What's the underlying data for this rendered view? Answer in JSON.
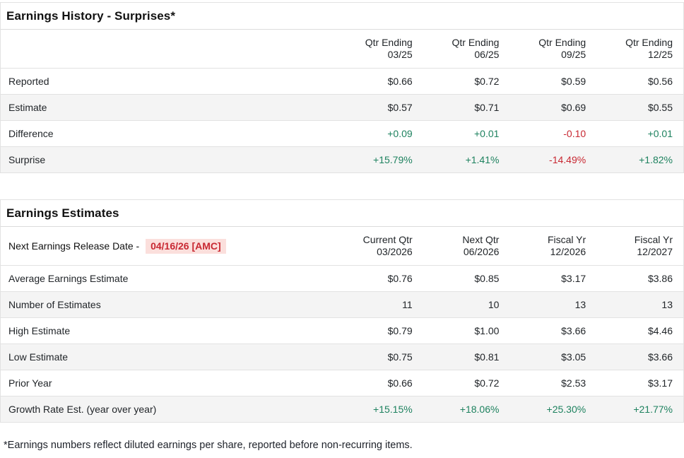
{
  "colors": {
    "positive": "#1e825f",
    "negative": "#c82832",
    "highlight_bg": "#fbdfdc",
    "row_stripe": "#f4f4f4",
    "border": "#e2e2e2"
  },
  "surprises": {
    "title": "Earnings History - Surprises*",
    "columns": [
      {
        "line1": "Qtr Ending",
        "line2": "03/25"
      },
      {
        "line1": "Qtr Ending",
        "line2": "06/25"
      },
      {
        "line1": "Qtr Ending",
        "line2": "09/25"
      },
      {
        "line1": "Qtr Ending",
        "line2": "12/25"
      }
    ],
    "rows": [
      {
        "label": "Reported",
        "values": [
          "$0.66",
          "$0.72",
          "$0.59",
          "$0.56"
        ]
      },
      {
        "label": "Estimate",
        "values": [
          "$0.57",
          "$0.71",
          "$0.69",
          "$0.55"
        ]
      },
      {
        "label": "Difference",
        "values": [
          "+0.09",
          "+0.01",
          "-0.10",
          "+0.01"
        ],
        "tones": [
          "pos",
          "pos",
          "neg",
          "pos"
        ]
      },
      {
        "label": "Surprise",
        "values": [
          "+15.79%",
          "+1.41%",
          "-14.49%",
          "+1.82%"
        ],
        "tones": [
          "pos",
          "pos",
          "neg",
          "pos"
        ]
      }
    ]
  },
  "estimates": {
    "title": "Earnings Estimates",
    "release_label": "Next Earnings Release Date -",
    "release_date": "04/16/26 [AMC]",
    "columns": [
      {
        "line1": "Current Qtr",
        "line2": "03/2026"
      },
      {
        "line1": "Next Qtr",
        "line2": "06/2026"
      },
      {
        "line1": "Fiscal Yr",
        "line2": "12/2026"
      },
      {
        "line1": "Fiscal Yr",
        "line2": "12/2027"
      }
    ],
    "rows": [
      {
        "label": "Average Earnings Estimate",
        "values": [
          "$0.76",
          "$0.85",
          "$3.17",
          "$3.86"
        ]
      },
      {
        "label": "Number of Estimates",
        "values": [
          "11",
          "10",
          "13",
          "13"
        ]
      },
      {
        "label": "High Estimate",
        "values": [
          "$0.79",
          "$1.00",
          "$3.66",
          "$4.46"
        ]
      },
      {
        "label": "Low Estimate",
        "values": [
          "$0.75",
          "$0.81",
          "$3.05",
          "$3.66"
        ]
      },
      {
        "label": "Prior Year",
        "values": [
          "$0.66",
          "$0.72",
          "$2.53",
          "$3.17"
        ]
      },
      {
        "label": "Growth Rate Est. (year over year)",
        "values": [
          "+15.15%",
          "+18.06%",
          "+25.30%",
          "+21.77%"
        ],
        "tones": [
          "pos",
          "pos",
          "pos",
          "pos"
        ]
      }
    ]
  },
  "footnote": "*Earnings numbers reflect diluted earnings per share, reported before non-recurring items."
}
